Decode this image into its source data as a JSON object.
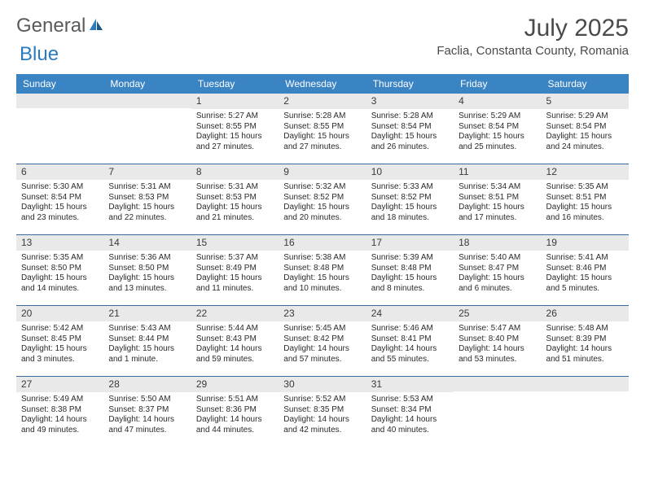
{
  "logo": {
    "text1": "General",
    "text2": "Blue"
  },
  "title": "July 2025",
  "location": "Faclia, Constanta County, Romania",
  "colors": {
    "header_bg": "#3a84c4",
    "header_text": "#ffffff",
    "daynum_bg": "#e9e9e9",
    "week_border": "#3a6a9a",
    "body_text": "#2a2a2a",
    "title_text": "#4a4a4a"
  },
  "day_names": [
    "Sunday",
    "Monday",
    "Tuesday",
    "Wednesday",
    "Thursday",
    "Friday",
    "Saturday"
  ],
  "weeks": [
    [
      null,
      null,
      {
        "n": "1",
        "sr": "Sunrise: 5:27 AM",
        "ss": "Sunset: 8:55 PM",
        "d1": "Daylight: 15 hours",
        "d2": "and 27 minutes."
      },
      {
        "n": "2",
        "sr": "Sunrise: 5:28 AM",
        "ss": "Sunset: 8:55 PM",
        "d1": "Daylight: 15 hours",
        "d2": "and 27 minutes."
      },
      {
        "n": "3",
        "sr": "Sunrise: 5:28 AM",
        "ss": "Sunset: 8:54 PM",
        "d1": "Daylight: 15 hours",
        "d2": "and 26 minutes."
      },
      {
        "n": "4",
        "sr": "Sunrise: 5:29 AM",
        "ss": "Sunset: 8:54 PM",
        "d1": "Daylight: 15 hours",
        "d2": "and 25 minutes."
      },
      {
        "n": "5",
        "sr": "Sunrise: 5:29 AM",
        "ss": "Sunset: 8:54 PM",
        "d1": "Daylight: 15 hours",
        "d2": "and 24 minutes."
      }
    ],
    [
      {
        "n": "6",
        "sr": "Sunrise: 5:30 AM",
        "ss": "Sunset: 8:54 PM",
        "d1": "Daylight: 15 hours",
        "d2": "and 23 minutes."
      },
      {
        "n": "7",
        "sr": "Sunrise: 5:31 AM",
        "ss": "Sunset: 8:53 PM",
        "d1": "Daylight: 15 hours",
        "d2": "and 22 minutes."
      },
      {
        "n": "8",
        "sr": "Sunrise: 5:31 AM",
        "ss": "Sunset: 8:53 PM",
        "d1": "Daylight: 15 hours",
        "d2": "and 21 minutes."
      },
      {
        "n": "9",
        "sr": "Sunrise: 5:32 AM",
        "ss": "Sunset: 8:52 PM",
        "d1": "Daylight: 15 hours",
        "d2": "and 20 minutes."
      },
      {
        "n": "10",
        "sr": "Sunrise: 5:33 AM",
        "ss": "Sunset: 8:52 PM",
        "d1": "Daylight: 15 hours",
        "d2": "and 18 minutes."
      },
      {
        "n": "11",
        "sr": "Sunrise: 5:34 AM",
        "ss": "Sunset: 8:51 PM",
        "d1": "Daylight: 15 hours",
        "d2": "and 17 minutes."
      },
      {
        "n": "12",
        "sr": "Sunrise: 5:35 AM",
        "ss": "Sunset: 8:51 PM",
        "d1": "Daylight: 15 hours",
        "d2": "and 16 minutes."
      }
    ],
    [
      {
        "n": "13",
        "sr": "Sunrise: 5:35 AM",
        "ss": "Sunset: 8:50 PM",
        "d1": "Daylight: 15 hours",
        "d2": "and 14 minutes."
      },
      {
        "n": "14",
        "sr": "Sunrise: 5:36 AM",
        "ss": "Sunset: 8:50 PM",
        "d1": "Daylight: 15 hours",
        "d2": "and 13 minutes."
      },
      {
        "n": "15",
        "sr": "Sunrise: 5:37 AM",
        "ss": "Sunset: 8:49 PM",
        "d1": "Daylight: 15 hours",
        "d2": "and 11 minutes."
      },
      {
        "n": "16",
        "sr": "Sunrise: 5:38 AM",
        "ss": "Sunset: 8:48 PM",
        "d1": "Daylight: 15 hours",
        "d2": "and 10 minutes."
      },
      {
        "n": "17",
        "sr": "Sunrise: 5:39 AM",
        "ss": "Sunset: 8:48 PM",
        "d1": "Daylight: 15 hours",
        "d2": "and 8 minutes."
      },
      {
        "n": "18",
        "sr": "Sunrise: 5:40 AM",
        "ss": "Sunset: 8:47 PM",
        "d1": "Daylight: 15 hours",
        "d2": "and 6 minutes."
      },
      {
        "n": "19",
        "sr": "Sunrise: 5:41 AM",
        "ss": "Sunset: 8:46 PM",
        "d1": "Daylight: 15 hours",
        "d2": "and 5 minutes."
      }
    ],
    [
      {
        "n": "20",
        "sr": "Sunrise: 5:42 AM",
        "ss": "Sunset: 8:45 PM",
        "d1": "Daylight: 15 hours",
        "d2": "and 3 minutes."
      },
      {
        "n": "21",
        "sr": "Sunrise: 5:43 AM",
        "ss": "Sunset: 8:44 PM",
        "d1": "Daylight: 15 hours",
        "d2": "and 1 minute."
      },
      {
        "n": "22",
        "sr": "Sunrise: 5:44 AM",
        "ss": "Sunset: 8:43 PM",
        "d1": "Daylight: 14 hours",
        "d2": "and 59 minutes."
      },
      {
        "n": "23",
        "sr": "Sunrise: 5:45 AM",
        "ss": "Sunset: 8:42 PM",
        "d1": "Daylight: 14 hours",
        "d2": "and 57 minutes."
      },
      {
        "n": "24",
        "sr": "Sunrise: 5:46 AM",
        "ss": "Sunset: 8:41 PM",
        "d1": "Daylight: 14 hours",
        "d2": "and 55 minutes."
      },
      {
        "n": "25",
        "sr": "Sunrise: 5:47 AM",
        "ss": "Sunset: 8:40 PM",
        "d1": "Daylight: 14 hours",
        "d2": "and 53 minutes."
      },
      {
        "n": "26",
        "sr": "Sunrise: 5:48 AM",
        "ss": "Sunset: 8:39 PM",
        "d1": "Daylight: 14 hours",
        "d2": "and 51 minutes."
      }
    ],
    [
      {
        "n": "27",
        "sr": "Sunrise: 5:49 AM",
        "ss": "Sunset: 8:38 PM",
        "d1": "Daylight: 14 hours",
        "d2": "and 49 minutes."
      },
      {
        "n": "28",
        "sr": "Sunrise: 5:50 AM",
        "ss": "Sunset: 8:37 PM",
        "d1": "Daylight: 14 hours",
        "d2": "and 47 minutes."
      },
      {
        "n": "29",
        "sr": "Sunrise: 5:51 AM",
        "ss": "Sunset: 8:36 PM",
        "d1": "Daylight: 14 hours",
        "d2": "and 44 minutes."
      },
      {
        "n": "30",
        "sr": "Sunrise: 5:52 AM",
        "ss": "Sunset: 8:35 PM",
        "d1": "Daylight: 14 hours",
        "d2": "and 42 minutes."
      },
      {
        "n": "31",
        "sr": "Sunrise: 5:53 AM",
        "ss": "Sunset: 8:34 PM",
        "d1": "Daylight: 14 hours",
        "d2": "and 40 minutes."
      },
      null,
      null
    ]
  ]
}
